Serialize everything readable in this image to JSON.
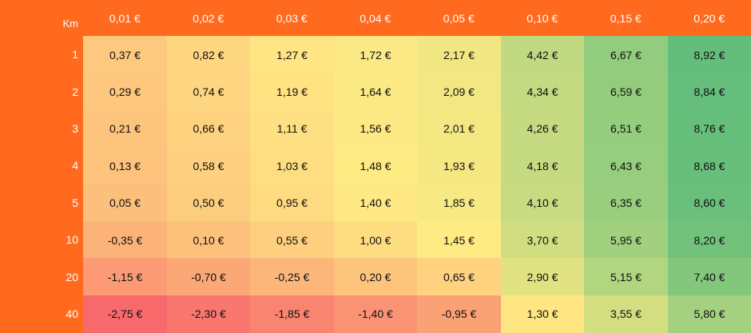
{
  "chart_data": {
    "type": "heatmap",
    "row_header_label": "Km",
    "columns": [
      "0,01 €",
      "0,02 €",
      "0,03 €",
      "0,04 €",
      "0,05 €",
      "0,10 €",
      "0,15 €",
      "0,20 €"
    ],
    "rows": [
      "1",
      "2",
      "3",
      "4",
      "5",
      "10",
      "20",
      "40"
    ],
    "values": [
      [
        0.37,
        0.82,
        1.27,
        1.72,
        2.17,
        4.42,
        6.67,
        8.92
      ],
      [
        0.29,
        0.74,
        1.19,
        1.64,
        2.09,
        4.34,
        6.59,
        8.84
      ],
      [
        0.21,
        0.66,
        1.11,
        1.56,
        2.01,
        4.26,
        6.51,
        8.76
      ],
      [
        0.13,
        0.58,
        1.03,
        1.48,
        1.93,
        4.18,
        6.43,
        8.68
      ],
      [
        0.05,
        0.5,
        0.95,
        1.4,
        1.85,
        4.1,
        6.35,
        8.6
      ],
      [
        -0.35,
        0.1,
        0.55,
        1.0,
        1.45,
        3.7,
        5.95,
        8.2
      ],
      [
        -1.15,
        -0.7,
        -0.25,
        0.2,
        0.65,
        2.9,
        5.15,
        7.4
      ],
      [
        -2.75,
        -2.3,
        -1.85,
        -1.4,
        -0.95,
        1.3,
        3.55,
        5.8
      ]
    ],
    "labels": [
      [
        "0,37 €",
        "0,82 €",
        "1,27 €",
        "1,72 €",
        "2,17 €",
        "4,42 €",
        "6,67 €",
        "8,92 €"
      ],
      [
        "0,29 €",
        "0,74 €",
        "1,19 €",
        "1,64 €",
        "2,09 €",
        "4,34 €",
        "6,59 €",
        "8,84 €"
      ],
      [
        "0,21 €",
        "0,66 €",
        "1,11 €",
        "1,56 €",
        "2,01 €",
        "4,26 €",
        "6,51 €",
        "8,76 €"
      ],
      [
        "0,13 €",
        "0,58 €",
        "1,03 €",
        "1,48 €",
        "1,93 €",
        "4,18 €",
        "6,43 €",
        "8,68 €"
      ],
      [
        "0,05 €",
        "0,50 €",
        "0,95 €",
        "1,40 €",
        "1,85 €",
        "4,10 €",
        "6,35 €",
        "8,60 €"
      ],
      [
        "-0,35 €",
        "0,10 €",
        "0,55 €",
        "1,00 €",
        "1,45 €",
        "3,70 €",
        "5,95 €",
        "8,20 €"
      ],
      [
        "-1,15 €",
        "-0,70 €",
        "-0,25 €",
        "0,20 €",
        "0,65 €",
        "2,90 €",
        "5,15 €",
        "7,40 €"
      ],
      [
        "-2,75 €",
        "-2,30 €",
        "-1,85 €",
        "-1,40 €",
        "-0,95 €",
        "1,30 €",
        "3,55 €",
        "5,80 €"
      ]
    ],
    "color_scale": [
      "#f8696b",
      "#ffeb84",
      "#63be7b"
    ],
    "header_color": "#ff6a1f"
  }
}
